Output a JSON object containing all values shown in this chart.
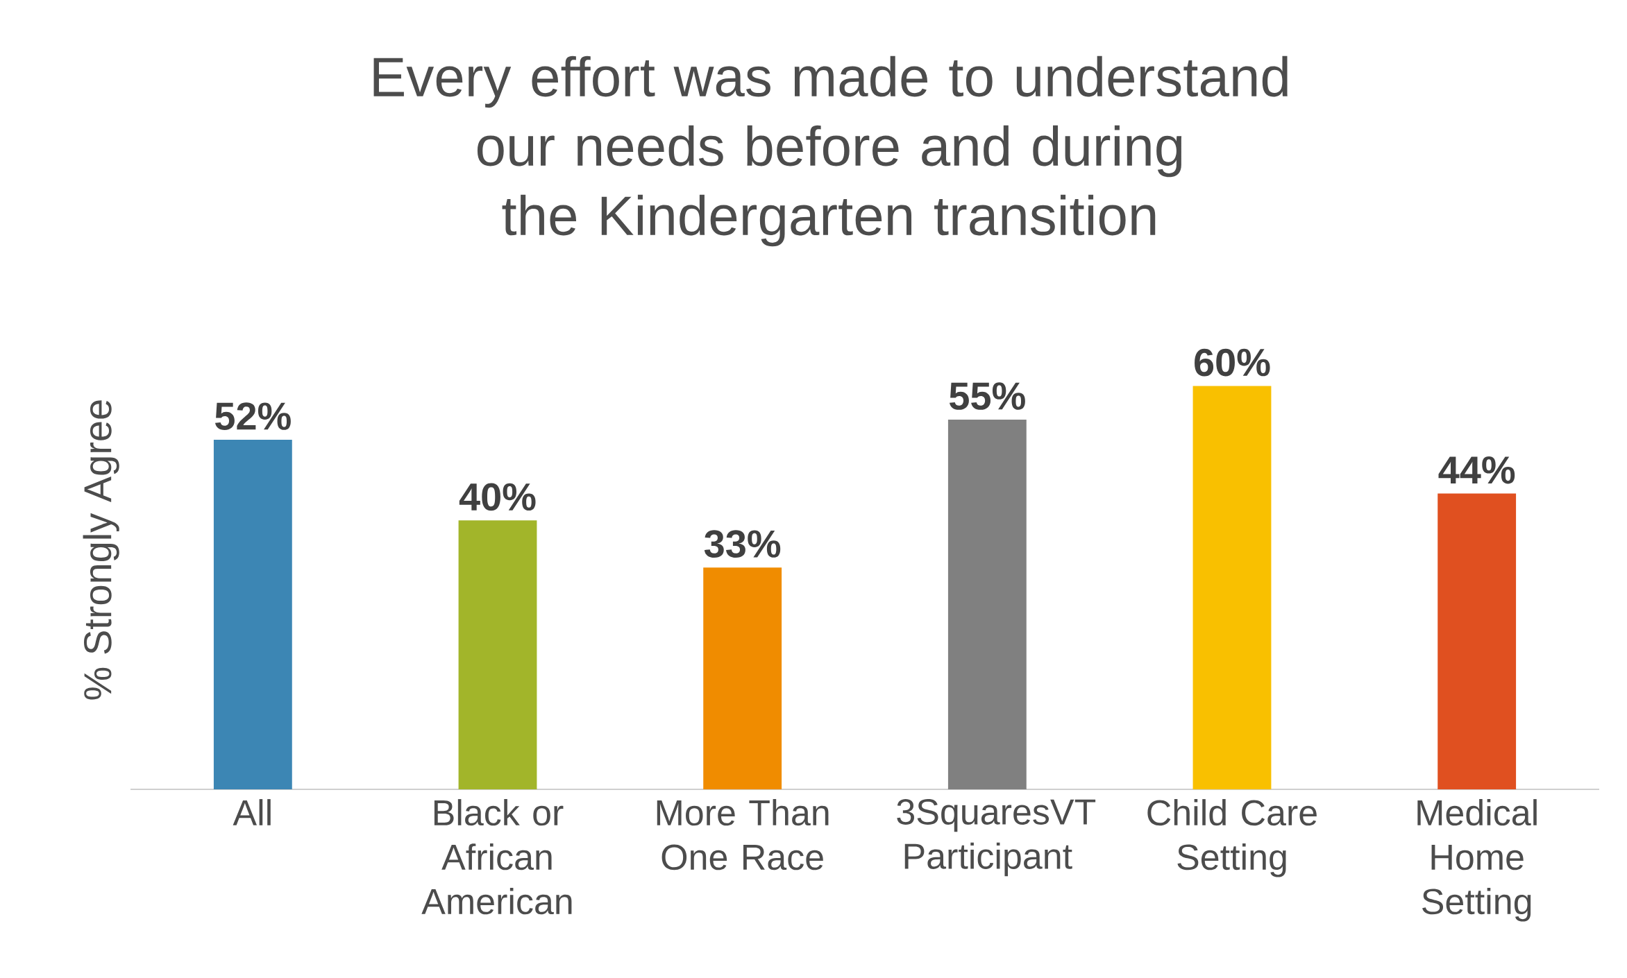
{
  "chart_data": {
    "type": "bar",
    "title": "Every effort was made to understand our needs before and during the Kindergarten transition",
    "ylabel": "% Strongly Agree",
    "categories": [
      "All",
      "Black or African American",
      "More Than One Race",
      "3SquaresVT Participant",
      "Child Care Setting",
      "Medical Home Setting"
    ],
    "values": [
      52,
      40,
      33,
      55,
      60,
      44
    ],
    "colors": [
      "#3c86b4",
      "#a2b52a",
      "#f08c00",
      "#808080",
      "#f9c000",
      "#e05020"
    ],
    "value_labels": [
      "52%",
      "40%",
      "33%",
      "55%",
      "60%",
      "44%"
    ]
  }
}
